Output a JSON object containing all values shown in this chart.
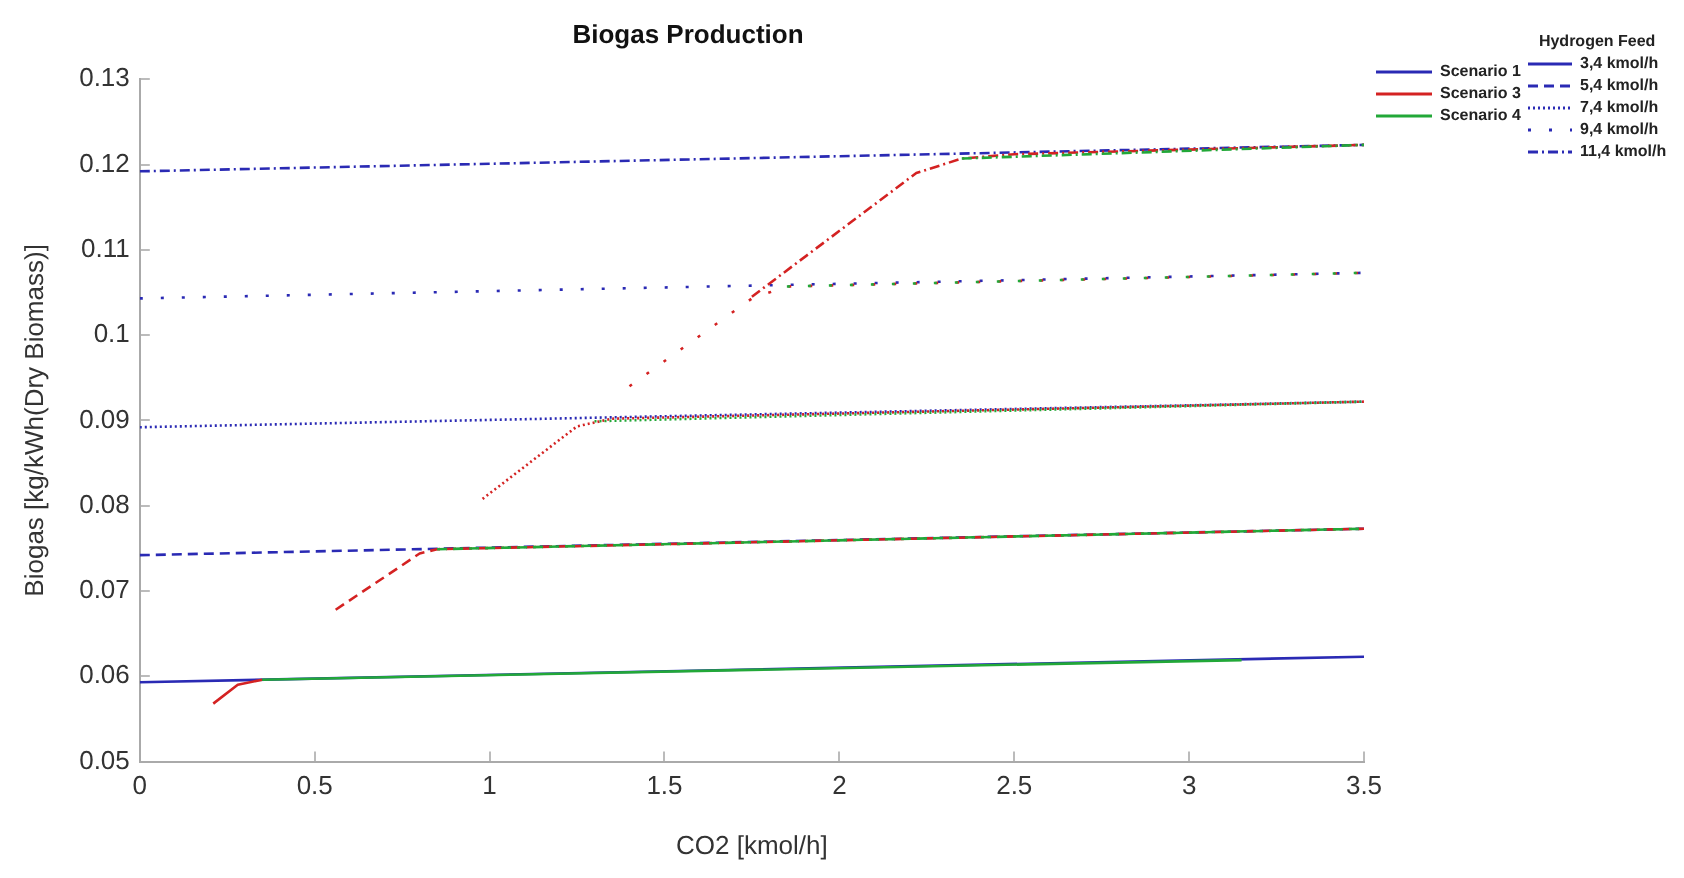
{
  "chart_data": {
    "type": "line",
    "title": "Biogas Production",
    "xlabel": "CO2 [kmol/h]",
    "ylabel": "Biogas [kg/kWh(Dry Biomass)]",
    "xlim": [
      0,
      3.5
    ],
    "xticks": [
      0,
      0.5,
      1,
      1.5,
      2,
      2.5,
      3,
      3.5
    ],
    "ylim": [
      0.05,
      0.13
    ],
    "yticks": [
      0.05,
      0.06,
      0.07,
      0.08,
      0.09,
      0.1,
      0.11,
      0.12,
      0.13
    ],
    "grid": false,
    "legend": "top right",
    "marker": "none",
    "legend_title": "Hydrogen Feed",
    "annotations": [
      "3,4 kmol/h",
      "5,4 kmol/h",
      "7,4 kmol/h",
      "9,4 kmol/h",
      "11,4 kmol/h"
    ],
    "series": [
      {
        "name": "Scenario 1",
        "color": "#2a2ab4",
        "line_style": "solid",
        "x": [
          0,
          3.5
        ],
        "values": [
          0.0593,
          0.0623
        ]
      },
      {
        "color": "#2a2ab4",
        "line_style": "dashed",
        "x": [
          0,
          3.5
        ],
        "values": [
          0.0742,
          0.0773
        ]
      },
      {
        "color": "#2a2ab4",
        "line_style": "dotted",
        "x": [
          0,
          3.5
        ],
        "values": [
          0.0892,
          0.0922
        ]
      },
      {
        "color": "#2a2ab4",
        "line_style": "loosely dotted",
        "x": [
          0,
          3.5
        ],
        "values": [
          0.1043,
          0.1073
        ]
      },
      {
        "color": "#2a2ab4",
        "line_style": "dashdot",
        "x": [
          0,
          3.5
        ],
        "values": [
          0.1192,
          0.1223
        ]
      },
      {
        "name": "Scenario 3",
        "color": "#d42222",
        "line_style": "solid",
        "x": [
          0.21,
          0.28,
          0.35
        ],
        "values": [
          0.0568,
          0.059,
          0.0596
        ]
      },
      {
        "color": "#d42222",
        "line_style": "dashed",
        "x": [
          0.56,
          0.8,
          0.85,
          3.5
        ],
        "values": [
          0.0678,
          0.0744,
          0.0749,
          0.0773
        ]
      },
      {
        "color": "#d42222",
        "line_style": "dotted",
        "x": [
          0.98,
          1.25,
          1.35,
          3.5
        ],
        "values": [
          0.0808,
          0.0893,
          0.0902,
          0.0922
        ]
      },
      {
        "color": "#d42222",
        "line_style": "loosely dotted",
        "x": [
          1.4,
          1.75,
          1.85,
          3.5
        ],
        "values": [
          0.094,
          0.1043,
          0.1057,
          0.1073
        ]
      },
      {
        "color": "#d42222",
        "line_style": "dashdot",
        "x": [
          1.75,
          2.22,
          2.35,
          2.5,
          3.5
        ],
        "values": [
          0.1045,
          0.119,
          0.1207,
          0.1212,
          0.1223
        ]
      },
      {
        "name": "Scenario 4",
        "color": "#22a838",
        "line_style": "solid",
        "x": [
          0.35,
          3.15
        ],
        "values": [
          0.0596,
          0.0619
        ]
      },
      {
        "color": "#22a838",
        "line_style": "dashed",
        "x": [
          0.85,
          3.5
        ],
        "values": [
          0.0749,
          0.0773
        ]
      },
      {
        "color": "#22a838",
        "line_style": "dotted",
        "x": [
          1.3,
          3.5
        ],
        "values": [
          0.0899,
          0.0922
        ]
      },
      {
        "color": "#22a838",
        "line_style": "loosely dotted",
        "x": [
          1.85,
          3.5
        ],
        "values": [
          0.1057,
          0.1073
        ]
      },
      {
        "color": "#22a838",
        "line_style": "dashdot",
        "x": [
          2.35,
          3.5
        ],
        "values": [
          0.1207,
          0.1223
        ]
      }
    ]
  }
}
